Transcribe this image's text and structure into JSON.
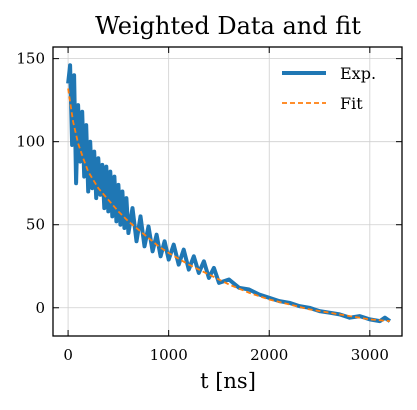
{
  "chart_data": {
    "type": "line",
    "title": "Weighted Data and fit",
    "xlabel": "t [ns]",
    "ylabel": "",
    "xlim": [
      -150,
      3320
    ],
    "ylim": [
      -17,
      157
    ],
    "xticks": [
      0,
      1000,
      2000,
      3000
    ],
    "yticks": [
      0,
      50,
      100,
      150
    ],
    "grid": true,
    "legend_position": "top-right",
    "series": [
      {
        "name": "Exp.",
        "style": "solid",
        "color": "#1f77b4",
        "x": [
          0,
          20,
          40,
          60,
          80,
          100,
          120,
          140,
          160,
          180,
          200,
          220,
          240,
          260,
          280,
          300,
          320,
          340,
          360,
          380,
          400,
          420,
          440,
          460,
          480,
          500,
          520,
          540,
          560,
          580,
          600,
          640,
          680,
          720,
          760,
          800,
          840,
          880,
          920,
          960,
          1000,
          1050,
          1100,
          1150,
          1200,
          1250,
          1300,
          1350,
          1400,
          1450,
          1500,
          1600,
          1700,
          1800,
          1900,
          2000,
          2100,
          2200,
          2300,
          2400,
          2500,
          2600,
          2700,
          2800,
          2900,
          3000,
          3100,
          3150,
          3200
        ],
        "y": [
          135,
          146,
          98,
          140,
          75,
          122,
          88,
          118,
          79,
          110,
          70,
          100,
          72,
          94,
          66,
          90,
          68,
          86,
          60,
          85,
          58,
          82,
          55,
          79,
          52,
          74,
          50,
          70,
          48,
          66,
          45,
          60,
          40,
          55,
          37,
          49,
          34,
          44,
          31,
          40,
          29,
          38,
          26,
          35,
          23,
          31,
          21,
          28,
          18,
          24,
          15,
          17,
          12,
          11,
          8,
          6,
          4,
          3,
          1,
          0,
          -2,
          -3,
          -4,
          -6,
          -5,
          -7,
          -8,
          -6,
          -8
        ]
      },
      {
        "name": "Fit",
        "style": "dashed",
        "color": "#ff7f0e",
        "x": [
          0,
          50,
          100,
          150,
          200,
          300,
          400,
          500,
          600,
          700,
          800,
          900,
          1000,
          1200,
          1400,
          1600,
          1800,
          2000,
          2200,
          2400,
          2600,
          2800,
          3000,
          3200
        ],
        "y": [
          132,
          112,
          99,
          90,
          82,
          72,
          65,
          58,
          52,
          47,
          42,
          37,
          33,
          26,
          20,
          14,
          9,
          5,
          2,
          -1,
          -3,
          -5,
          -7,
          -8
        ]
      }
    ]
  }
}
